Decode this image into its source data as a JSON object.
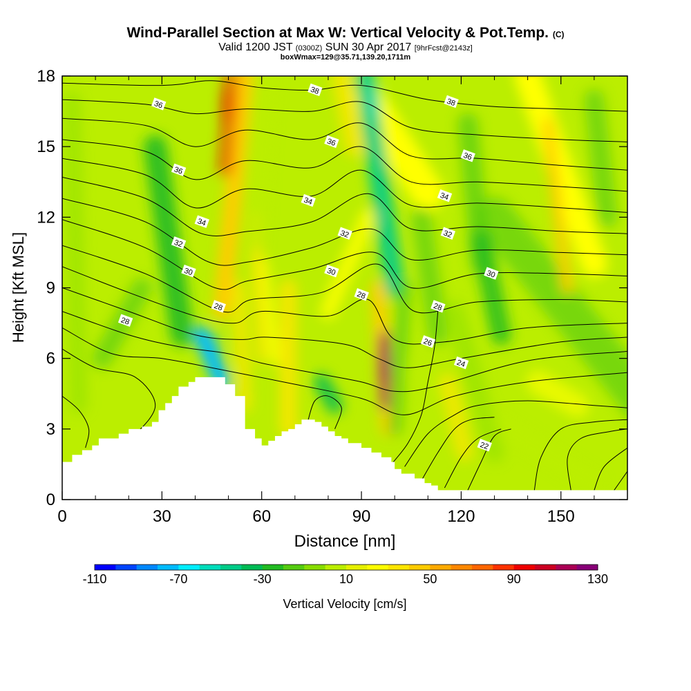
{
  "header": {
    "title_main": "Wind-Parallel Section at Max W: Vertical Velocity & Pot.Temp.",
    "title_copyright": "(C)",
    "valid_prefix": "Valid 1200 JST",
    "valid_utc": "(0300Z)",
    "valid_date": "SUN 30 Apr 2017",
    "forecast_info": "[9hrFcst@2143z]",
    "box_info": "boxWmax=129@35.71,139.20,1711m"
  },
  "chart_data": {
    "type": "heatmap",
    "xlabel": "Distance [nm]",
    "ylabel": "Height [Kft MSL]",
    "xlim": [
      0,
      170
    ],
    "ylim": [
      0,
      18
    ],
    "x_ticks": [
      0,
      30,
      60,
      90,
      120,
      150
    ],
    "y_ticks": [
      0,
      3,
      6,
      9,
      12,
      15,
      18
    ],
    "colorbar": {
      "label": "Vertical Velocity [cm/s]",
      "tick_labels": [
        -110,
        -70,
        -30,
        10,
        50,
        90,
        130
      ],
      "levels": [
        -110,
        -100,
        -90,
        -80,
        -70,
        -60,
        -50,
        -40,
        -30,
        -20,
        -10,
        0,
        10,
        20,
        30,
        40,
        50,
        60,
        70,
        80,
        90,
        100,
        110,
        120,
        130
      ],
      "colors": [
        "#0000ff",
        "#0044ff",
        "#0088ff",
        "#00bbff",
        "#00eeff",
        "#00ddbb",
        "#00cc88",
        "#00bb55",
        "#22bb22",
        "#55cc11",
        "#88dd00",
        "#bbee00",
        "#e6f000",
        "#ffff00",
        "#ffe600",
        "#ffcc00",
        "#ffaa00",
        "#ff8800",
        "#ff6600",
        "#ff3300",
        "#ee0000",
        "#cc0022",
        "#aa0055",
        "#880077",
        "#660099"
      ]
    },
    "contour_labels": [
      {
        "text": "36",
        "x": 29,
        "y": 16.8
      },
      {
        "text": "38",
        "x": 76,
        "y": 17.4
      },
      {
        "text": "38",
        "x": 117,
        "y": 16.9
      },
      {
        "text": "36",
        "x": 81,
        "y": 15.2
      },
      {
        "text": "36",
        "x": 35,
        "y": 14.0
      },
      {
        "text": "36",
        "x": 122,
        "y": 14.6
      },
      {
        "text": "34",
        "x": 74,
        "y": 12.7
      },
      {
        "text": "34",
        "x": 115,
        "y": 12.9
      },
      {
        "text": "34",
        "x": 42,
        "y": 11.8
      },
      {
        "text": "32",
        "x": 35,
        "y": 10.9
      },
      {
        "text": "32",
        "x": 85,
        "y": 11.3
      },
      {
        "text": "32",
        "x": 116,
        "y": 11.3
      },
      {
        "text": "30",
        "x": 38,
        "y": 9.7
      },
      {
        "text": "30",
        "x": 81,
        "y": 9.7
      },
      {
        "text": "30",
        "x": 129,
        "y": 9.6
      },
      {
        "text": "28",
        "x": 19,
        "y": 7.6
      },
      {
        "text": "28",
        "x": 47,
        "y": 8.2
      },
      {
        "text": "28",
        "x": 90,
        "y": 8.7
      },
      {
        "text": "28",
        "x": 113,
        "y": 8.2
      },
      {
        "text": "26",
        "x": 110,
        "y": 6.7
      },
      {
        "text": "24",
        "x": 120,
        "y": 5.8
      },
      {
        "text": "22",
        "x": 127,
        "y": 2.3
      }
    ],
    "theta_levels": [
      22,
      24,
      26,
      28,
      30,
      32,
      34,
      36,
      38
    ],
    "terrain_kft": [
      [
        0,
        1.6
      ],
      [
        3,
        1.9
      ],
      [
        6,
        2.1
      ],
      [
        9,
        2.3
      ],
      [
        11,
        2.6
      ],
      [
        17,
        2.8
      ],
      [
        20,
        3.0
      ],
      [
        24,
        3.1
      ],
      [
        27,
        3.3
      ],
      [
        29,
        3.8
      ],
      [
        31,
        4.1
      ],
      [
        33,
        4.4
      ],
      [
        35,
        4.8
      ],
      [
        38,
        5.0
      ],
      [
        40,
        5.2
      ],
      [
        49,
        4.9
      ],
      [
        52,
        4.4
      ],
      [
        55,
        3.0
      ],
      [
        58,
        2.6
      ],
      [
        60,
        2.3
      ],
      [
        62,
        2.5
      ],
      [
        64,
        2.7
      ],
      [
        66,
        2.9
      ],
      [
        68,
        3.0
      ],
      [
        70,
        3.2
      ],
      [
        72,
        3.4
      ],
      [
        76,
        3.3
      ],
      [
        78,
        3.1
      ],
      [
        80,
        2.9
      ],
      [
        82,
        2.7
      ],
      [
        84,
        2.6
      ],
      [
        86,
        2.4
      ],
      [
        90,
        2.2
      ],
      [
        93,
        2.0
      ],
      [
        96,
        1.8
      ],
      [
        99,
        1.6
      ],
      [
        100,
        1.3
      ],
      [
        102,
        1.1
      ],
      [
        106,
        0.9
      ],
      [
        109,
        0.7
      ],
      [
        111,
        0.6
      ],
      [
        113,
        0.4
      ],
      [
        170,
        0.4
      ]
    ]
  }
}
